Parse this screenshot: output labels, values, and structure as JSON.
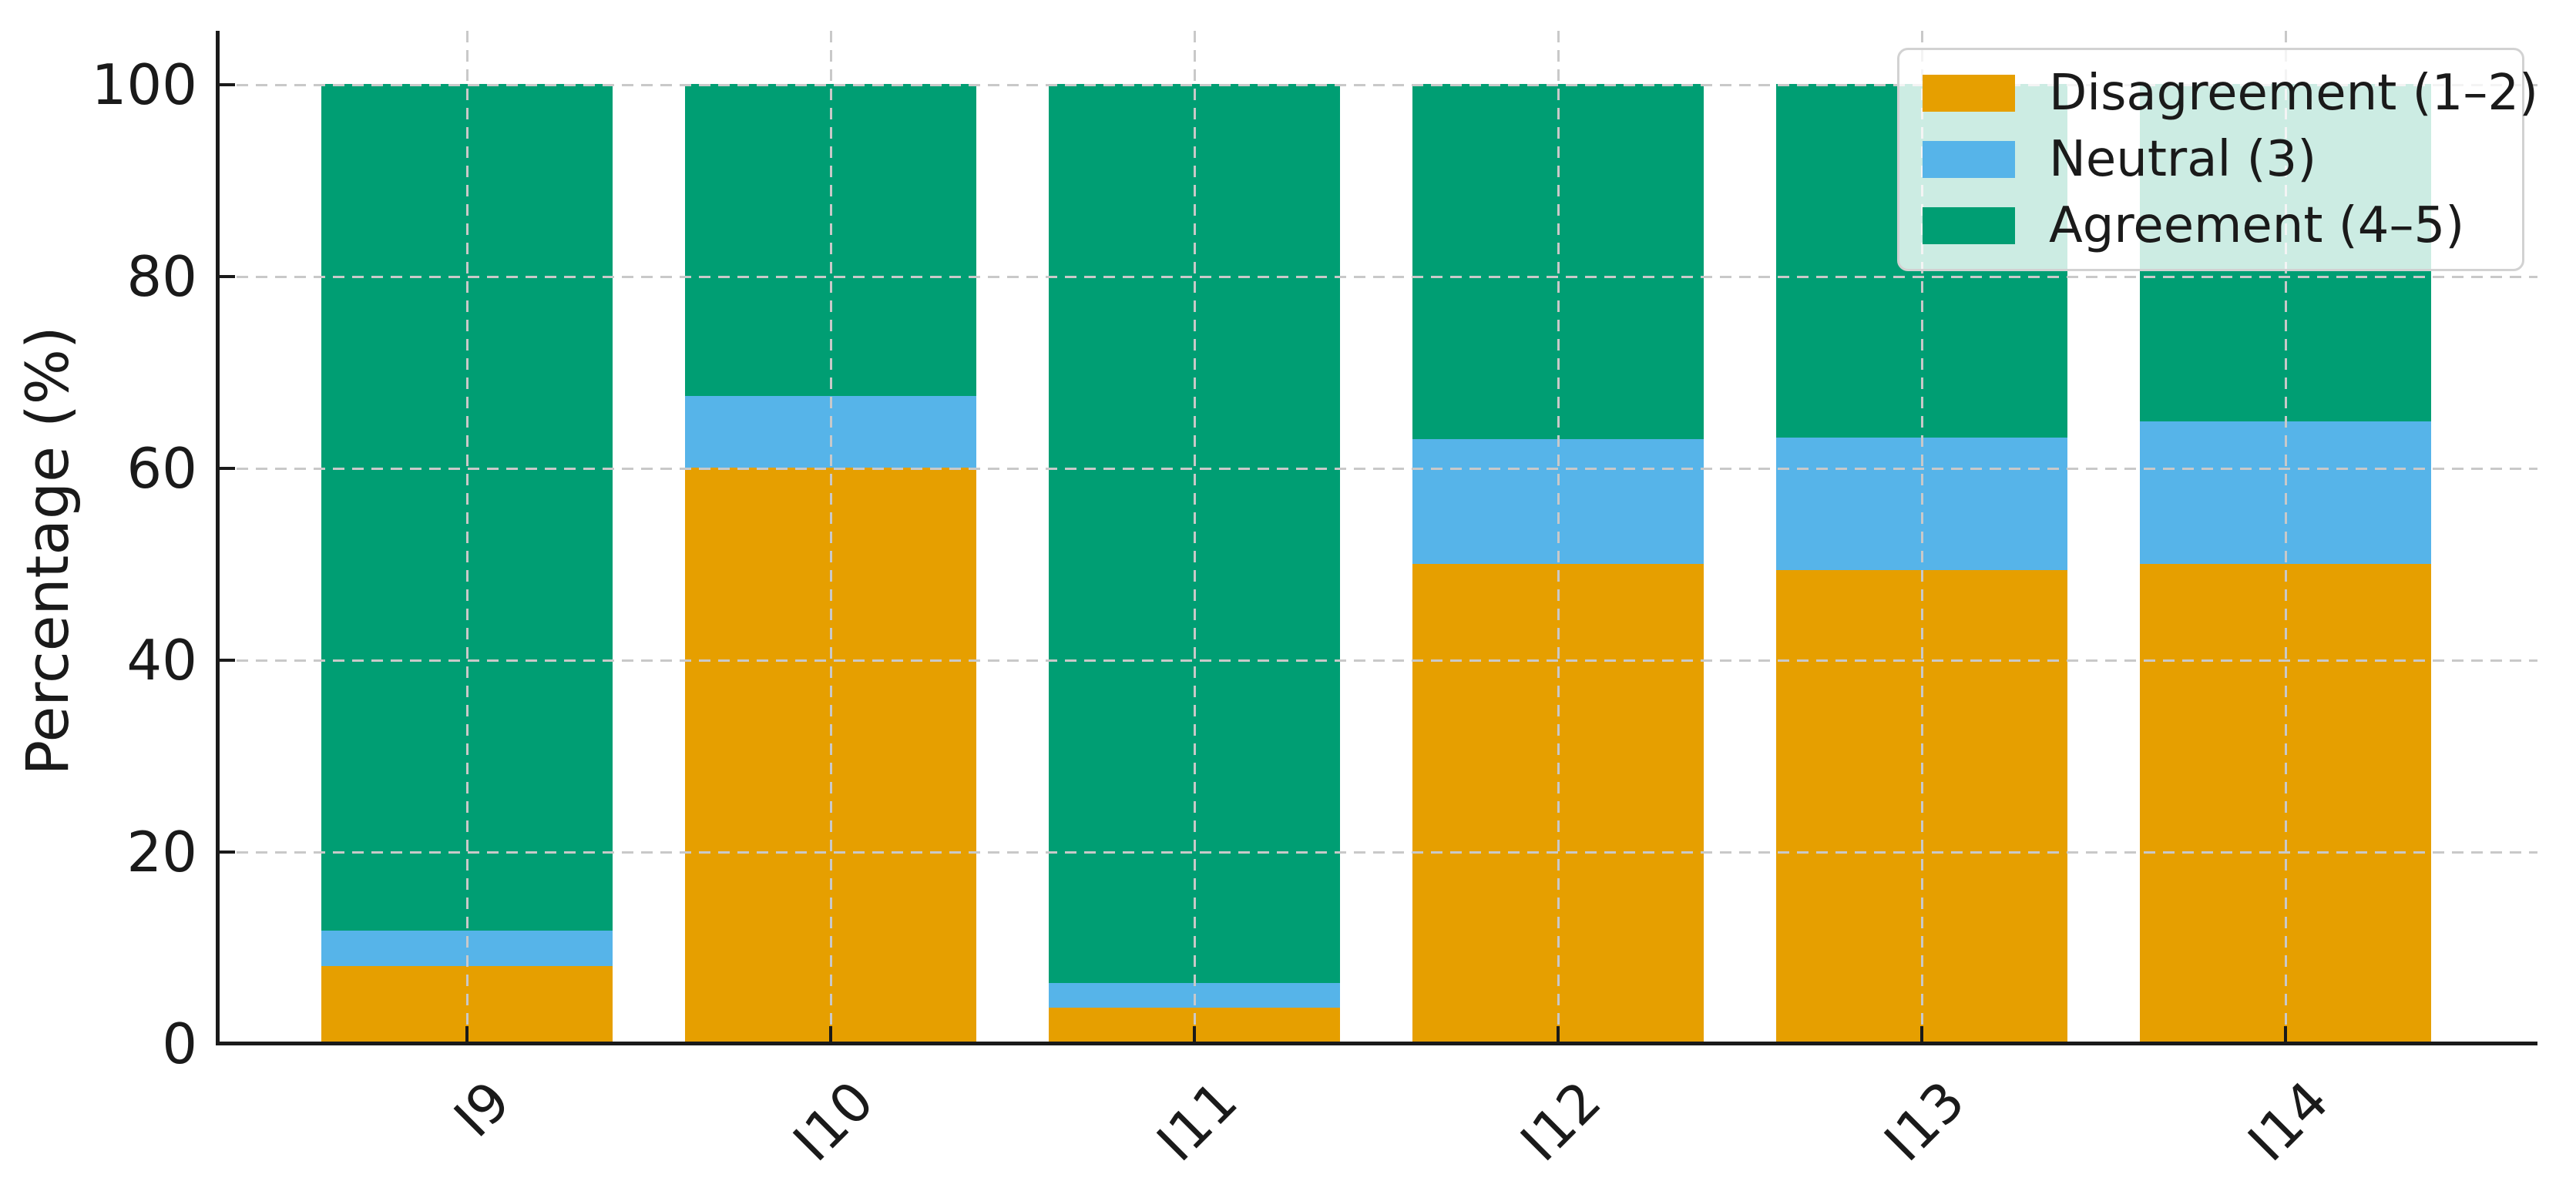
{
  "colors": {
    "disagreement": "#E69F00",
    "neutral": "#56B4E9",
    "agreement": "#009E73",
    "grid": "#c9c9c9",
    "axis": "#1a1a1a",
    "legend_border": "#d2d2d2",
    "background": "#ffffff"
  },
  "chart_data": {
    "type": "bar",
    "stacked": true,
    "title": "",
    "xlabel": "",
    "ylabel": "Percentage (%)",
    "ylim": [
      0,
      100
    ],
    "y_ticks": [
      0,
      20,
      40,
      60,
      80,
      100
    ],
    "grid": "both, dashed, drawn over bars",
    "legend_position": "upper right",
    "categories": [
      "I9",
      "I10",
      "I11",
      "I12",
      "I13",
      "I14"
    ],
    "series": [
      {
        "name": "Disagreement (1–2)",
        "color": "#E69F00",
        "values": [
          8.0,
          60.0,
          3.7,
          50.0,
          49.3,
          50.0
        ]
      },
      {
        "name": "Neutral (3)",
        "color": "#56B4E9",
        "values": [
          3.7,
          7.5,
          2.6,
          13.0,
          13.8,
          14.8
        ]
      },
      {
        "name": "Agreement (4–5)",
        "color": "#009E73",
        "values": [
          88.3,
          32.5,
          93.7,
          37.0,
          36.9,
          35.2
        ]
      }
    ]
  }
}
